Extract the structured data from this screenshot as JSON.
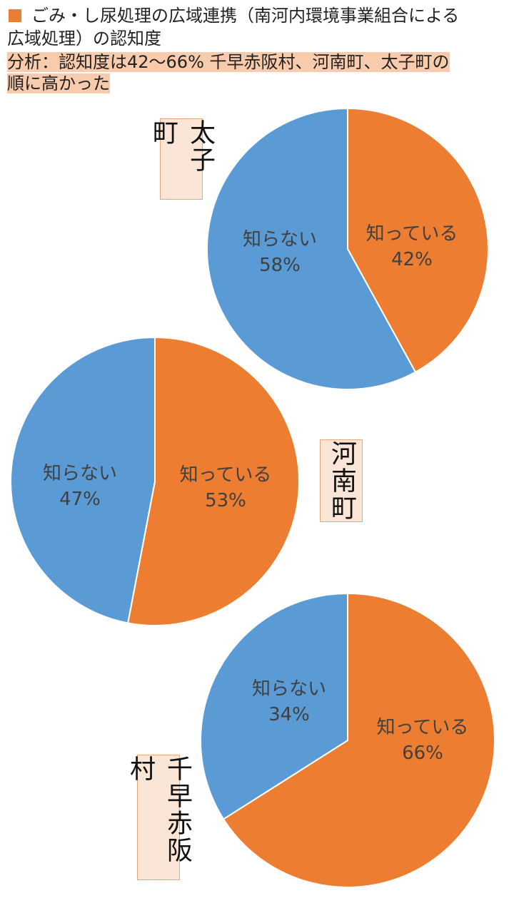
{
  "header": {
    "title": "ごみ・し尿処理の広域連携（南河内環境事業組合による広域処理）の認知度",
    "title_line1": "ごみ・し尿処理の広域連携（南河内環境事業組合による",
    "title_line2": "広域処理）の認知度",
    "analysis_line1": "分析：認知度は42～66%  千早赤阪村、河南町、太子町の",
    "analysis_line2": "順に高かった",
    "marker_color": "#ED7D31",
    "highlight_color": "#F8CBAD"
  },
  "colors": {
    "know": "#ED7D31",
    "dont_know": "#5B9BD5"
  },
  "chart_data": [
    {
      "type": "pie",
      "title": "太子町",
      "categories": [
        "知っている",
        "知らない"
      ],
      "values": [
        42,
        58
      ],
      "labels": [
        "42%",
        "58%"
      ]
    },
    {
      "type": "pie",
      "title": "河南町",
      "categories": [
        "知っている",
        "知らない"
      ],
      "values": [
        53,
        47
      ],
      "labels": [
        "53%",
        "47%"
      ]
    },
    {
      "type": "pie",
      "title": "千早赤阪村",
      "categories": [
        "知っている",
        "知らない"
      ],
      "values": [
        66,
        34
      ],
      "labels": [
        "66%",
        "34%"
      ]
    }
  ]
}
